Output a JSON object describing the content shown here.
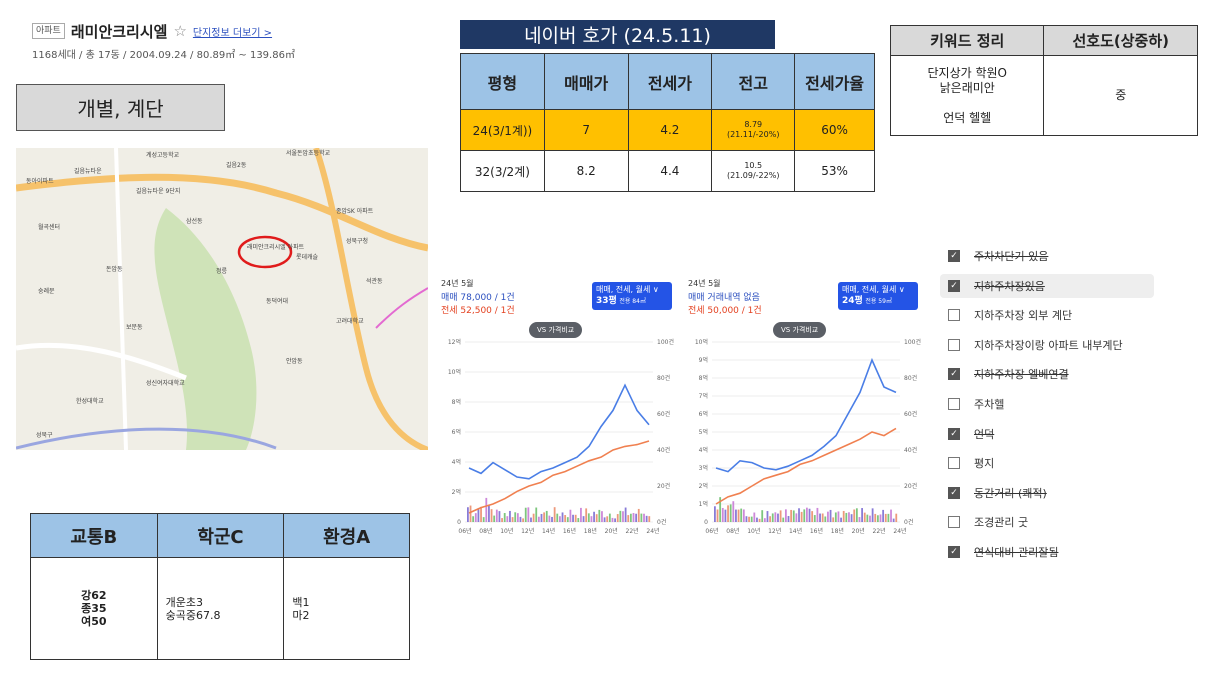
{
  "header": {
    "badge": "아파트",
    "name": "래미안크리시엘",
    "more_link": "단지정보 더보기 >",
    "summary": "1168세대 / 총 17동 / 2004.09.24 / 80.89㎡ ~ 139.86㎡"
  },
  "label_box": "개별, 계단",
  "map": {
    "marker_label": "래미안크리시엘 아파트",
    "places": [
      "계성고등학교",
      "길음뉴타운",
      "동아이파트",
      "길음뉴타운 9단지",
      "길음2동",
      "서울돈암초등학교",
      "월곡센터",
      "삼선동",
      "종암SK 아파트",
      "성북구청",
      "롯데캐슬",
      "정릉",
      "돈암동",
      "숭례문",
      "보문동",
      "석관동",
      "고려대학교",
      "안암동",
      "성신여자대학교",
      "동덕여대",
      "한성대학교",
      "성북구"
    ]
  },
  "price_table": {
    "title": "네이버 호가 (24.5.11)",
    "headers": [
      "평형",
      "매매가",
      "전세가",
      "전고",
      "전세가율"
    ],
    "rows": [
      {
        "type": "24(3/1계))",
        "sale": "7",
        "lease": "4.2",
        "high": "8.79",
        "high_sub": "(21.11/-20%)",
        "ratio": "60%"
      },
      {
        "type": "32(3/2계)",
        "sale": "8.2",
        "lease": "4.4",
        "high": "10.5",
        "high_sub": "(21.09/-22%)",
        "ratio": "53%"
      }
    ]
  },
  "keyword_table": {
    "headers": [
      "키워드 정리",
      "선호도(상중하)"
    ],
    "keywords": "단지상가 학원O\n낡은래미안\n\n언덕 헬헬",
    "preference": "중"
  },
  "grade_table": {
    "headers": [
      "교통B",
      "학군C",
      "환경A"
    ],
    "transport": "강62\n종35\n여50",
    "school": "개운초3\n숭곡중67.8",
    "environment": "백1\n마2"
  },
  "charts": [
    {
      "period": "24년 5월",
      "sale": "매매 78,000 / 1건",
      "lease": "전세 52,500 / 1건",
      "selector": "매매, 전세, 월세 ∨",
      "size": "33평",
      "size_sub": "전용 84㎡",
      "vs": "VS 가격비교",
      "y_left": [
        "12억",
        "10억",
        "8억",
        "6억",
        "4억",
        "2억",
        "0"
      ],
      "y_right": [
        "100건",
        "80건",
        "60건",
        "40건",
        "20건",
        "0건"
      ],
      "x_labels": [
        "06년",
        "08년",
        "10년",
        "12년",
        "14년",
        "16년",
        "18년",
        "20년",
        "22년",
        "24년"
      ]
    },
    {
      "period": "24년 5월",
      "sale": "매매 거래내역 없음",
      "lease": "전세 50,000 / 1건",
      "selector": "매매, 전세, 월세 ∨",
      "size": "24평",
      "size_sub": "전용 59㎡",
      "vs": "VS 가격비교",
      "y_left": [
        "10억",
        "9억",
        "8억",
        "7억",
        "6억",
        "5억",
        "4억",
        "3억",
        "2억",
        "1억",
        "0"
      ],
      "y_right": [
        "100건",
        "80건",
        "60건",
        "40건",
        "20건",
        "0건"
      ],
      "x_labels": [
        "06년",
        "08년",
        "10년",
        "12년",
        "14년",
        "16년",
        "18년",
        "20년",
        "22년",
        "24년"
      ]
    }
  ],
  "checklist": [
    {
      "label": "주차차단기 있음",
      "checked": true,
      "strike": true
    },
    {
      "label": "지하주차장있음",
      "checked": true,
      "strike": true
    },
    {
      "label": "지하주차장 외부 계단",
      "checked": false,
      "strike": false
    },
    {
      "label": "지하주차장이랑 아파트 내부계단",
      "checked": false,
      "strike": false
    },
    {
      "label": "지하주차장 엘베연결",
      "checked": true,
      "strike": true
    },
    {
      "label": "주차헬",
      "checked": false,
      "strike": false
    },
    {
      "label": "언덕",
      "checked": true,
      "strike": true
    },
    {
      "label": "평지",
      "checked": false,
      "strike": false
    },
    {
      "label": "동간거리 (쾌적)",
      "checked": true,
      "strike": true
    },
    {
      "label": "조경관리 굿",
      "checked": false,
      "strike": false
    },
    {
      "label": "연식대비 관리잘됨",
      "checked": true,
      "strike": true
    }
  ],
  "colors": {
    "navy": "#1f3864",
    "header_blue": "#9dc3e6",
    "highlight": "#ffc000",
    "sale_line": "#4a7ee6",
    "lease_line": "#f08050"
  }
}
